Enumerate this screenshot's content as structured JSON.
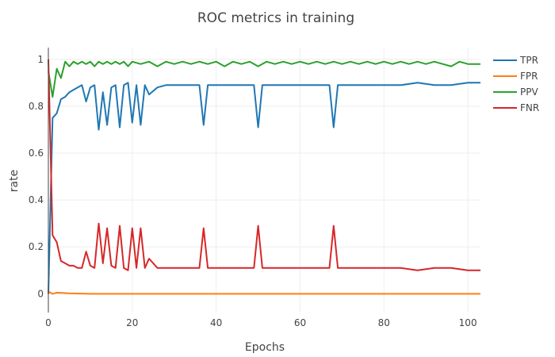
{
  "chart_data": {
    "type": "line",
    "title": "ROC metrics in training",
    "xlabel": "Epochs",
    "ylabel": "rate",
    "xlim": [
      0,
      103
    ],
    "ylim": [
      -0.08,
      1.05
    ],
    "xticks": [
      0,
      20,
      40,
      60,
      80,
      100
    ],
    "yticks": [
      0,
      0.2,
      0.4,
      0.6,
      0.8,
      1
    ],
    "ytick_labels": [
      "0",
      "0.2",
      "0.4",
      "0.6",
      "0.8",
      "1"
    ],
    "grid": true,
    "legend_position": "top-right",
    "series": [
      {
        "name": "TPR",
        "color": "#1f77b4",
        "x": [
          0,
          1,
          2,
          3,
          4,
          5,
          6,
          7,
          8,
          9,
          10,
          11,
          12,
          13,
          14,
          15,
          16,
          17,
          18,
          19,
          20,
          21,
          22,
          23,
          24,
          26,
          28,
          30,
          34,
          36,
          37,
          38,
          40,
          44,
          48,
          49,
          50,
          51,
          54,
          58,
          62,
          66,
          67,
          68,
          69,
          72,
          76,
          80,
          84,
          88,
          92,
          96,
          100,
          103
        ],
        "y": [
          0.0,
          0.75,
          0.77,
          0.83,
          0.84,
          0.86,
          0.87,
          0.88,
          0.89,
          0.82,
          0.88,
          0.89,
          0.7,
          0.86,
          0.72,
          0.88,
          0.89,
          0.71,
          0.89,
          0.9,
          0.73,
          0.89,
          0.72,
          0.89,
          0.85,
          0.88,
          0.89,
          0.89,
          0.89,
          0.89,
          0.72,
          0.89,
          0.89,
          0.89,
          0.89,
          0.89,
          0.71,
          0.89,
          0.89,
          0.89,
          0.89,
          0.89,
          0.89,
          0.71,
          0.89,
          0.89,
          0.89,
          0.89,
          0.89,
          0.9,
          0.89,
          0.89,
          0.9,
          0.9
        ]
      },
      {
        "name": "FPR",
        "color": "#ff7f0e",
        "x": [
          0,
          1,
          2,
          5,
          10,
          20,
          40,
          60,
          80,
          100,
          103
        ],
        "y": [
          0.01,
          0.0,
          0.005,
          0.002,
          0.0,
          0.0,
          0.0,
          0.0,
          0.0,
          0.0,
          0.0
        ]
      },
      {
        "name": "PPV",
        "color": "#2ca02c",
        "x": [
          0,
          1,
          2,
          3,
          4,
          5,
          6,
          7,
          8,
          9,
          10,
          11,
          12,
          13,
          14,
          15,
          16,
          17,
          18,
          19,
          20,
          22,
          24,
          26,
          28,
          30,
          32,
          34,
          36,
          38,
          40,
          42,
          44,
          46,
          48,
          50,
          52,
          54,
          56,
          58,
          60,
          62,
          64,
          66,
          68,
          70,
          72,
          74,
          76,
          78,
          80,
          82,
          84,
          86,
          88,
          90,
          92,
          94,
          96,
          98,
          100,
          102,
          103
        ],
        "y": [
          0.95,
          0.84,
          0.96,
          0.92,
          0.99,
          0.97,
          0.99,
          0.98,
          0.99,
          0.98,
          0.99,
          0.97,
          0.99,
          0.98,
          0.99,
          0.98,
          0.99,
          0.98,
          0.99,
          0.97,
          0.99,
          0.98,
          0.99,
          0.97,
          0.99,
          0.98,
          0.99,
          0.98,
          0.99,
          0.98,
          0.99,
          0.97,
          0.99,
          0.98,
          0.99,
          0.97,
          0.99,
          0.98,
          0.99,
          0.98,
          0.99,
          0.98,
          0.99,
          0.98,
          0.99,
          0.98,
          0.99,
          0.98,
          0.99,
          0.98,
          0.99,
          0.98,
          0.99,
          0.98,
          0.99,
          0.98,
          0.99,
          0.98,
          0.97,
          0.99,
          0.98,
          0.98,
          0.98
        ]
      },
      {
        "name": "FNR",
        "color": "#d62728",
        "x": [
          0,
          1,
          2,
          3,
          4,
          5,
          6,
          7,
          8,
          9,
          10,
          11,
          12,
          13,
          14,
          15,
          16,
          17,
          18,
          19,
          20,
          21,
          22,
          23,
          24,
          26,
          28,
          30,
          34,
          36,
          37,
          38,
          40,
          44,
          48,
          49,
          50,
          51,
          54,
          58,
          62,
          66,
          67,
          68,
          69,
          72,
          76,
          80,
          84,
          88,
          92,
          96,
          100,
          103
        ],
        "y": [
          1.0,
          0.25,
          0.22,
          0.14,
          0.13,
          0.12,
          0.12,
          0.11,
          0.11,
          0.18,
          0.12,
          0.11,
          0.3,
          0.13,
          0.28,
          0.12,
          0.11,
          0.29,
          0.11,
          0.1,
          0.28,
          0.11,
          0.28,
          0.11,
          0.15,
          0.11,
          0.11,
          0.11,
          0.11,
          0.11,
          0.28,
          0.11,
          0.11,
          0.11,
          0.11,
          0.11,
          0.29,
          0.11,
          0.11,
          0.11,
          0.11,
          0.11,
          0.11,
          0.29,
          0.11,
          0.11,
          0.11,
          0.11,
          0.11,
          0.1,
          0.11,
          0.11,
          0.1,
          0.1
        ]
      }
    ]
  }
}
